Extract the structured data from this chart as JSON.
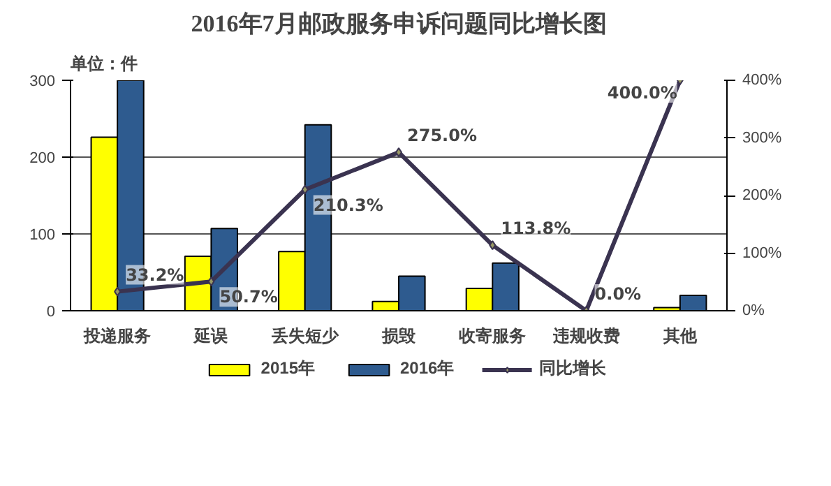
{
  "chart_data": {
    "type": "bar",
    "title": "2016年7月邮政服务申诉问题同比增长图",
    "annotations": [
      "单位：件"
    ],
    "categories": [
      "投递服务",
      "延误",
      "丢失短少",
      "损毁",
      "收寄服务",
      "违规收费",
      "其他"
    ],
    "series": [
      {
        "name": "2015年",
        "color": "#ffff00",
        "values": [
          226,
          71,
          77,
          12,
          29,
          0,
          4
        ]
      },
      {
        "name": "2016年",
        "color": "#2e5b8f",
        "values": [
          300,
          107,
          242,
          45,
          62,
          0,
          20
        ]
      },
      {
        "name": "同比增长",
        "type": "line",
        "axis": "y2",
        "color": "#3a3350",
        "marker": "diamond",
        "values": [
          33.2,
          50.7,
          210.3,
          275.0,
          113.8,
          0.0,
          400.0
        ],
        "value_labels": [
          "33.2%",
          "50.7%",
          "210.3%",
          "275.0%",
          "113.8%",
          "0.0%",
          "400.0%"
        ]
      }
    ],
    "ylim": [
      0,
      300
    ],
    "yticks": [
      0,
      100,
      200,
      300
    ],
    "y2lim": [
      0,
      400
    ],
    "y2ticks": [
      {
        "value": 0,
        "label": "0%"
      },
      {
        "value": 100,
        "label": "100%"
      },
      {
        "value": 200,
        "label": "200%"
      },
      {
        "value": 300,
        "label": "300%"
      },
      {
        "value": 400,
        "label": "400%"
      }
    ],
    "grid": "y",
    "legend": "bottom"
  }
}
